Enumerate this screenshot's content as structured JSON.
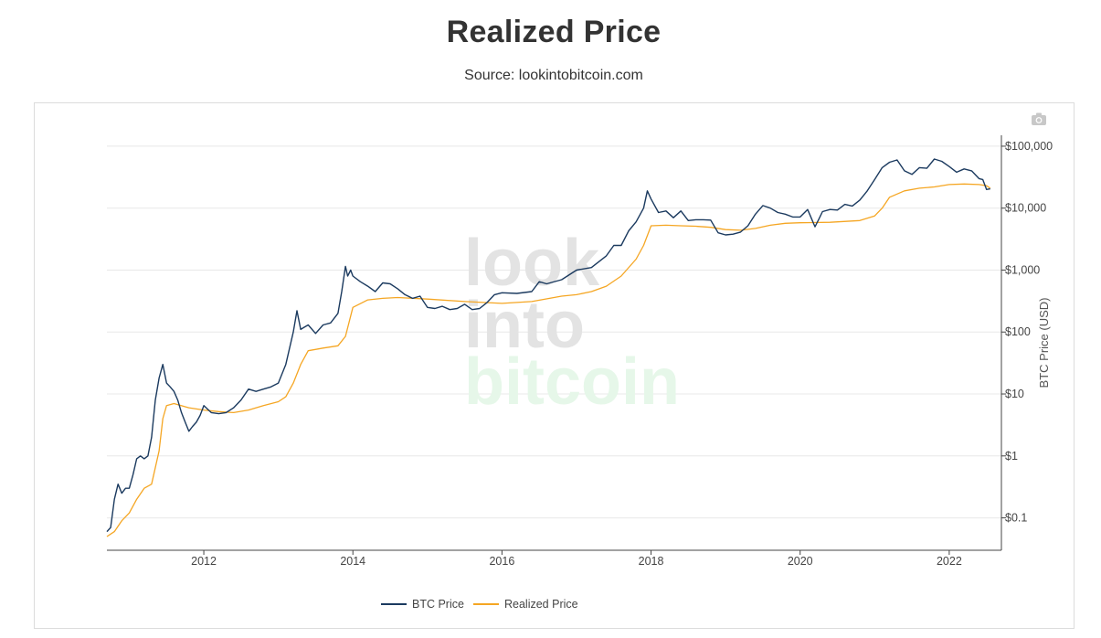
{
  "page": {
    "title": "Realized Price",
    "subtitle": "Source: lookintobitcoin.com"
  },
  "watermark": {
    "line1": "look",
    "line2": "into",
    "line3": "bitcoin"
  },
  "toolbar": {
    "icon": "camera-icon"
  },
  "colors": {
    "btc": "#1b3a5f",
    "realized": "#f5a623",
    "grid": "#e8e8e8",
    "axis": "#333333"
  },
  "chart_data": {
    "type": "line",
    "title": "",
    "ylabel": "BTC Price (USD)",
    "yscale": "log",
    "y_axis_side": "right",
    "xlim": [
      2010.7,
      2022.7
    ],
    "ylim": [
      0.03,
      150000
    ],
    "grid": true,
    "legend_position": "bottom-center",
    "x_ticks": [
      2012,
      2014,
      2016,
      2018,
      2020,
      2022
    ],
    "x_tick_labels": [
      "2012",
      "2014",
      "2016",
      "2018",
      "2020",
      "2022"
    ],
    "y_ticks": [
      0.1,
      1,
      10,
      100,
      1000,
      10000,
      100000
    ],
    "y_tick_labels": [
      "$0.1",
      "$1",
      "$10",
      "$100",
      "$1,000",
      "$10,000",
      "$100,000"
    ],
    "series": [
      {
        "name": "BTC Price",
        "color": "#1b3a5f",
        "x": [
          2010.7,
          2010.75,
          2010.8,
          2010.85,
          2010.9,
          2010.95,
          2011.0,
          2011.05,
          2011.1,
          2011.15,
          2011.2,
          2011.25,
          2011.3,
          2011.35,
          2011.4,
          2011.45,
          2011.5,
          2011.55,
          2011.6,
          2011.65,
          2011.7,
          2011.75,
          2011.8,
          2011.85,
          2011.9,
          2011.95,
          2012.0,
          2012.1,
          2012.2,
          2012.3,
          2012.4,
          2012.5,
          2012.6,
          2012.7,
          2012.8,
          2012.9,
          2013.0,
          2013.1,
          2013.2,
          2013.25,
          2013.3,
          2013.35,
          2013.4,
          2013.5,
          2013.6,
          2013.7,
          2013.8,
          2013.85,
          2013.9,
          2013.93,
          2013.97,
          2014.0,
          2014.1,
          2014.2,
          2014.3,
          2014.4,
          2014.5,
          2014.6,
          2014.7,
          2014.8,
          2014.9,
          2015.0,
          2015.1,
          2015.2,
          2015.3,
          2015.4,
          2015.5,
          2015.6,
          2015.7,
          2015.8,
          2015.9,
          2016.0,
          2016.2,
          2016.4,
          2016.5,
          2016.6,
          2016.8,
          2017.0,
          2017.2,
          2017.4,
          2017.5,
          2017.6,
          2017.7,
          2017.8,
          2017.9,
          2017.95,
          2018.0,
          2018.1,
          2018.2,
          2018.3,
          2018.4,
          2018.5,
          2018.6,
          2018.7,
          2018.8,
          2018.9,
          2019.0,
          2019.1,
          2019.2,
          2019.3,
          2019.4,
          2019.5,
          2019.6,
          2019.7,
          2019.8,
          2019.9,
          2020.0,
          2020.1,
          2020.2,
          2020.25,
          2020.3,
          2020.4,
          2020.5,
          2020.6,
          2020.7,
          2020.8,
          2020.9,
          2021.0,
          2021.1,
          2021.2,
          2021.3,
          2021.4,
          2021.5,
          2021.6,
          2021.7,
          2021.8,
          2021.9,
          2022.0,
          2022.1,
          2022.2,
          2022.3,
          2022.4,
          2022.45,
          2022.5,
          2022.55
        ],
        "y": [
          0.06,
          0.07,
          0.2,
          0.35,
          0.25,
          0.3,
          0.3,
          0.5,
          0.9,
          1.0,
          0.9,
          1.0,
          2.0,
          8.0,
          18.0,
          30.0,
          15.0,
          13.0,
          11.0,
          8.0,
          5.0,
          3.5,
          2.5,
          3.0,
          3.5,
          4.5,
          6.5,
          5.0,
          4.8,
          5.0,
          6.0,
          8.0,
          12.0,
          11.0,
          12.0,
          13.0,
          15.0,
          30.0,
          100.0,
          220.0,
          110.0,
          120.0,
          130.0,
          95.0,
          130.0,
          140.0,
          200.0,
          450.0,
          1150.0,
          800.0,
          1000.0,
          800.0,
          650.0,
          550.0,
          450.0,
          620.0,
          600.0,
          500.0,
          400.0,
          350.0,
          380.0,
          250.0,
          240.0,
          260.0,
          230.0,
          240.0,
          280.0,
          230.0,
          240.0,
          300.0,
          400.0,
          430.0,
          420.0,
          450.0,
          650.0,
          600.0,
          700.0,
          1000.0,
          1100.0,
          1700.0,
          2500.0,
          2500.0,
          4300.0,
          6000.0,
          10000.0,
          19000.0,
          14000.0,
          8500.0,
          9000.0,
          7000.0,
          9000.0,
          6300.0,
          6500.0,
          6500.0,
          6400.0,
          4000.0,
          3700.0,
          3800.0,
          4100.0,
          5200.0,
          8000.0,
          11000.0,
          10000.0,
          8500.0,
          8000.0,
          7200.0,
          7200.0,
          9500.0,
          5000.0,
          6600.0,
          8800.0,
          9500.0,
          9300.0,
          11500.0,
          10800.0,
          13500.0,
          19000.0,
          29000.0,
          45000.0,
          55000.0,
          60000.0,
          40000.0,
          35000.0,
          45000.0,
          44000.0,
          62000.0,
          57000.0,
          47000.0,
          38000.0,
          43000.0,
          40000.0,
          30000.0,
          29000.0,
          20000.0,
          20500.0
        ]
      },
      {
        "name": "Realized Price",
        "color": "#f5a623",
        "x": [
          2010.7,
          2010.8,
          2010.9,
          2011.0,
          2011.1,
          2011.2,
          2011.3,
          2011.4,
          2011.45,
          2011.5,
          2011.6,
          2011.8,
          2012.0,
          2012.2,
          2012.4,
          2012.6,
          2012.8,
          2013.0,
          2013.1,
          2013.2,
          2013.3,
          2013.4,
          2013.6,
          2013.8,
          2013.9,
          2014.0,
          2014.2,
          2014.4,
          2014.6,
          2015.0,
          2015.5,
          2016.0,
          2016.4,
          2016.8,
          2017.0,
          2017.2,
          2017.4,
          2017.6,
          2017.8,
          2017.9,
          2018.0,
          2018.2,
          2018.4,
          2018.6,
          2018.8,
          2019.0,
          2019.2,
          2019.4,
          2019.6,
          2019.8,
          2020.0,
          2020.4,
          2020.8,
          2021.0,
          2021.1,
          2021.2,
          2021.4,
          2021.6,
          2021.8,
          2022.0,
          2022.2,
          2022.4,
          2022.5,
          2022.55
        ],
        "y": [
          0.05,
          0.06,
          0.09,
          0.12,
          0.2,
          0.3,
          0.35,
          1.2,
          4.0,
          6.5,
          7.0,
          6.0,
          5.5,
          5.2,
          5.0,
          5.5,
          6.5,
          7.5,
          9.0,
          15.0,
          30.0,
          50.0,
          55.0,
          60.0,
          85.0,
          250.0,
          330.0,
          350.0,
          360.0,
          340.0,
          310.0,
          290.0,
          310.0,
          380.0,
          400.0,
          450.0,
          550.0,
          800.0,
          1500.0,
          2500.0,
          5200.0,
          5300.0,
          5200.0,
          5100.0,
          4900.0,
          4500.0,
          4400.0,
          4700.0,
          5300.0,
          5700.0,
          5800.0,
          5900.0,
          6300.0,
          7500.0,
          10000.0,
          15000.0,
          19000.0,
          21000.0,
          22000.0,
          24000.0,
          24500.0,
          24000.0,
          23000.0,
          21000.0
        ]
      }
    ]
  }
}
